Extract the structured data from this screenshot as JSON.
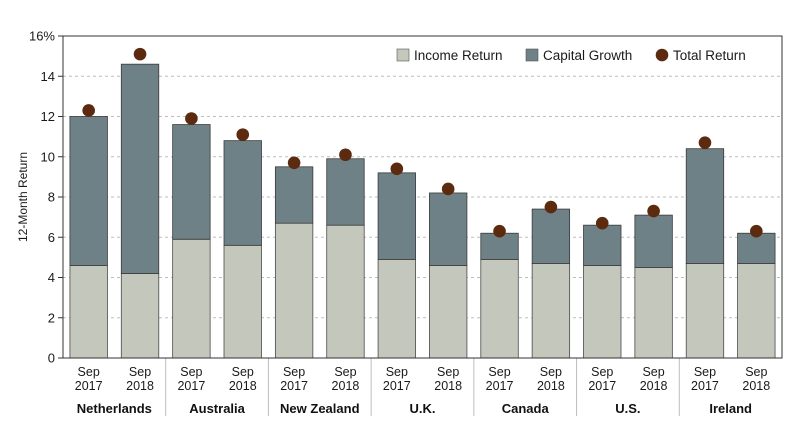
{
  "chart_data": {
    "type": "bar",
    "stacked": true,
    "ylabel": "12-Month Return",
    "ylim": [
      0,
      16
    ],
    "yticks": [
      0,
      2,
      4,
      6,
      8,
      10,
      12,
      14,
      16
    ],
    "ytick_labels": [
      "0",
      "2",
      "4",
      "6",
      "8",
      "10",
      "12",
      "14",
      "16%"
    ],
    "grid": true,
    "legend_position": "top-right",
    "groups": [
      "Netherlands",
      "Australia",
      "New Zealand",
      "U.K.",
      "Canada",
      "U.S.",
      "Ireland"
    ],
    "periods": [
      "Sep\n2017",
      "Sep\n2018"
    ],
    "categories": [
      "Netherlands Sep 2017",
      "Netherlands Sep 2018",
      "Australia Sep 2017",
      "Australia Sep 2018",
      "New Zealand Sep 2017",
      "New Zealand Sep 2018",
      "U.K. Sep 2017",
      "U.K. Sep 2018",
      "Canada Sep 2017",
      "Canada Sep 2018",
      "U.S. Sep 2017",
      "U.S. Sep 2018",
      "Ireland Sep 2017",
      "Ireland Sep 2018"
    ],
    "series": [
      {
        "name": "Income Return",
        "kind": "bar",
        "color": "#c4c7bc",
        "values": [
          4.6,
          4.2,
          5.9,
          5.6,
          6.7,
          6.6,
          4.9,
          4.6,
          4.9,
          4.7,
          4.6,
          4.5,
          4.7,
          4.7
        ]
      },
      {
        "name": "Capital Growth",
        "kind": "bar",
        "color": "#6e8187",
        "values": [
          7.4,
          10.4,
          5.7,
          5.2,
          2.8,
          3.3,
          4.3,
          3.6,
          1.3,
          2.7,
          2.0,
          2.6,
          5.7,
          1.5
        ]
      },
      {
        "name": "Total Return",
        "kind": "marker",
        "color": "#5c2a0e",
        "values": [
          12.3,
          15.1,
          11.9,
          11.1,
          9.7,
          10.1,
          9.4,
          8.4,
          6.3,
          7.5,
          6.7,
          7.3,
          10.7,
          6.3
        ]
      }
    ]
  }
}
